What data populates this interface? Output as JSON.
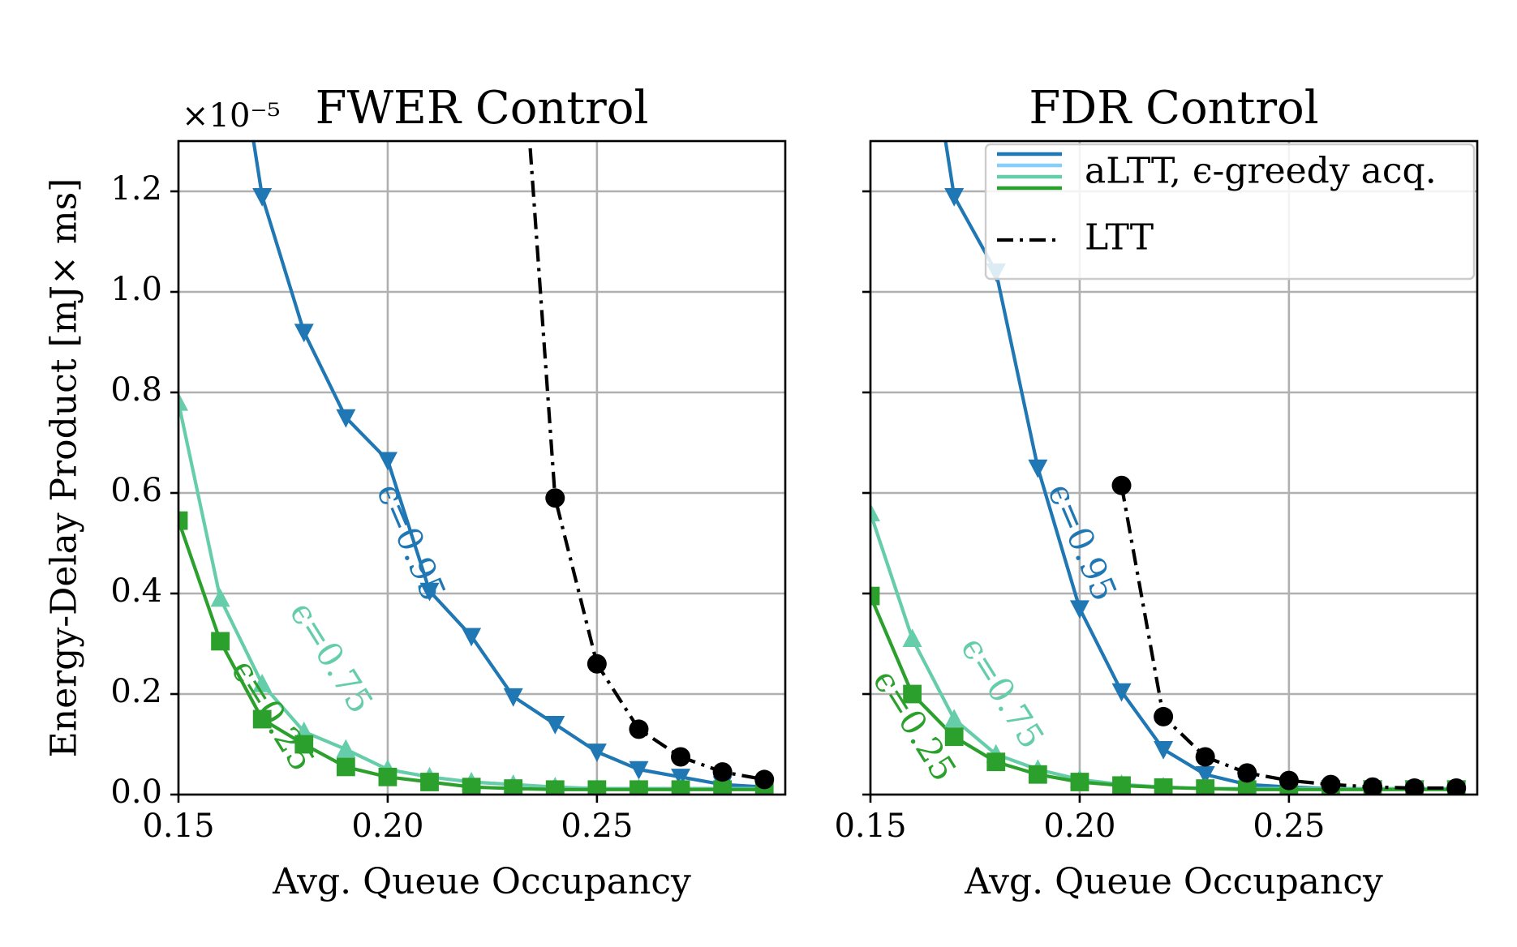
{
  "chart_data": [
    {
      "type": "line",
      "title": "FWER Control",
      "multiplier": "×10⁻⁵",
      "xlabel": "Avg. Queue Occupancy",
      "ylabel": "Energy-Delay Product [mJ× ms]",
      "xlim": [
        0.15,
        0.295
      ],
      "ylim": [
        0.0,
        1.3
      ],
      "xticks": [
        "0.15",
        "0.20",
        "0.25"
      ],
      "yticks": [
        "0.0",
        "0.2",
        "0.4",
        "0.6",
        "0.8",
        "1.0",
        "1.2"
      ],
      "grid": true,
      "series": [
        {
          "label": "ϵ=0.95",
          "color": "#1f77b4",
          "marker": "triangle-down",
          "style": "solid",
          "x": [
            0.17,
            0.18,
            0.19,
            0.2,
            0.21,
            0.22,
            0.23,
            0.24,
            0.25,
            0.26,
            0.27,
            0.28,
            0.29
          ],
          "y": [
            1.19,
            0.92,
            0.75,
            0.665,
            0.405,
            0.315,
            0.195,
            0.14,
            0.085,
            0.05,
            0.035,
            0.02,
            0.015
          ],
          "extend": [
            0.167,
            1.35
          ]
        },
        {
          "label": "ϵ=0.75",
          "color": "#66cdaa",
          "marker": "triangle-up",
          "style": "solid",
          "x": [
            0.15,
            0.16,
            0.17,
            0.18,
            0.19,
            0.2,
            0.21,
            0.22,
            0.23,
            0.24,
            0.25,
            0.26,
            0.27,
            0.28,
            0.29
          ],
          "y": [
            0.78,
            0.39,
            0.22,
            0.125,
            0.09,
            0.05,
            0.035,
            0.025,
            0.02,
            0.015,
            0.012,
            0.012,
            0.012,
            0.012,
            0.012
          ]
        },
        {
          "label": "ϵ=0.25",
          "color": "#2ca02c",
          "marker": "square",
          "style": "solid",
          "x": [
            0.15,
            0.16,
            0.17,
            0.18,
            0.19,
            0.2,
            0.21,
            0.22,
            0.23,
            0.24,
            0.25,
            0.26,
            0.27,
            0.28,
            0.29
          ],
          "y": [
            0.545,
            0.305,
            0.15,
            0.1,
            0.055,
            0.035,
            0.025,
            0.015,
            0.012,
            0.01,
            0.01,
            0.01,
            0.01,
            0.01,
            0.01
          ]
        },
        {
          "label": "LTT",
          "color": "#000000",
          "marker": "circle",
          "style": "dashdot",
          "x": [
            0.24,
            0.25,
            0.26,
            0.27,
            0.28,
            0.29
          ],
          "y": [
            0.59,
            0.26,
            0.13,
            0.075,
            0.045,
            0.03
          ],
          "extend": [
            0.2335,
            1.35
          ]
        }
      ],
      "annotations": [
        {
          "text": "ϵ=0.95",
          "x": 0.205,
          "y": 0.5,
          "rotation": 67,
          "color": "#1f77b4"
        },
        {
          "text": "ϵ=0.75",
          "x": 0.186,
          "y": 0.27,
          "rotation": 58,
          "color": "#66cdaa"
        },
        {
          "text": "ϵ=0.25",
          "x": 0.172,
          "y": 0.155,
          "rotation": 58,
          "color": "#2ca02c"
        }
      ]
    },
    {
      "type": "line",
      "title": "FDR Control",
      "xlabel": "Avg. Queue Occupancy",
      "ylabel": "",
      "xlim": [
        0.15,
        0.295
      ],
      "ylim": [
        0.0,
        1.3
      ],
      "xticks": [
        "0.15",
        "0.20",
        "0.25"
      ],
      "yticks": [],
      "grid": true,
      "legend": {
        "position": "top-right",
        "entries": [
          {
            "label": "aLTT, ϵ-greedy acq.",
            "colors": [
              "#1f77b4",
              "#87cefa",
              "#66cdaa",
              "#2ca02c"
            ],
            "style": "solid"
          },
          {
            "label": "LTT",
            "colors": [
              "#000000"
            ],
            "style": "dashdot"
          }
        ]
      },
      "series": [
        {
          "label": "ϵ=0.95",
          "color": "#1f77b4",
          "marker": "triangle-down",
          "style": "solid",
          "x": [
            0.17,
            0.18,
            0.19,
            0.2,
            0.21,
            0.22,
            0.23,
            0.24,
            0.25,
            0.26,
            0.27,
            0.28,
            0.29
          ],
          "y": [
            1.19,
            1.04,
            0.65,
            0.37,
            0.205,
            0.09,
            0.04,
            0.02,
            0.015,
            0.012,
            0.012,
            0.012,
            0.012
          ],
          "extend": [
            0.167,
            1.35
          ]
        },
        {
          "label": "ϵ=0.75",
          "color": "#66cdaa",
          "marker": "triangle-up",
          "style": "solid",
          "x": [
            0.15,
            0.16,
            0.17,
            0.18,
            0.19,
            0.2,
            0.21,
            0.22,
            0.23,
            0.24,
            0.25,
            0.26,
            0.27,
            0.28,
            0.29
          ],
          "y": [
            0.56,
            0.31,
            0.15,
            0.08,
            0.05,
            0.03,
            0.02,
            0.015,
            0.012,
            0.012,
            0.012,
            0.012,
            0.012,
            0.012,
            0.012
          ]
        },
        {
          "label": "ϵ=0.25",
          "color": "#2ca02c",
          "marker": "square",
          "style": "solid",
          "x": [
            0.15,
            0.16,
            0.17,
            0.18,
            0.19,
            0.2,
            0.21,
            0.22,
            0.23,
            0.24,
            0.25,
            0.26,
            0.27,
            0.28,
            0.29
          ],
          "y": [
            0.395,
            0.2,
            0.115,
            0.065,
            0.04,
            0.025,
            0.018,
            0.014,
            0.012,
            0.01,
            0.01,
            0.01,
            0.01,
            0.01,
            0.01
          ]
        },
        {
          "label": "LTT",
          "color": "#000000",
          "marker": "circle",
          "style": "dashdot",
          "x": [
            0.21,
            0.22,
            0.23,
            0.24,
            0.25,
            0.26,
            0.27,
            0.28,
            0.29
          ],
          "y": [
            0.615,
            0.155,
            0.075,
            0.043,
            0.028,
            0.02,
            0.015,
            0.013,
            0.013
          ]
        }
      ],
      "annotations": [
        {
          "text": "ϵ=0.95",
          "x": 0.2,
          "y": 0.5,
          "rotation": 67,
          "color": "#1f77b4"
        },
        {
          "text": "ϵ=0.75",
          "x": 0.181,
          "y": 0.2,
          "rotation": 58,
          "color": "#66cdaa"
        },
        {
          "text": "ϵ=0.25",
          "x": 0.16,
          "y": 0.135,
          "rotation": 58,
          "color": "#2ca02c"
        }
      ]
    }
  ]
}
